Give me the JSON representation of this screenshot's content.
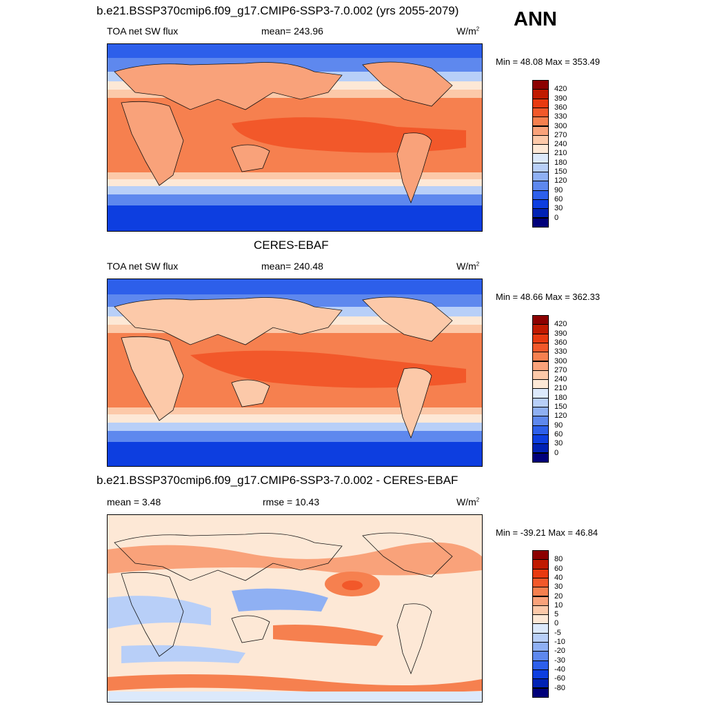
{
  "season": "ANN",
  "panels": [
    {
      "title": "b.e21.BSSP370cmip6.f09_g17.CMIP6-SSP3-7.0.002 (yrs 2055-2079)",
      "left_label": "TOA net SW flux",
      "center_label": "mean= 243.96",
      "units": "W/m",
      "units_sup": "2",
      "minmax": "Min =  48.08 Max = 353.49"
    },
    {
      "title": "CERES-EBAF",
      "left_label": "TOA net SW flux",
      "center_label": "mean= 240.48",
      "units": "W/m",
      "units_sup": "2",
      "minmax": "Min =  48.66 Max = 362.33"
    },
    {
      "title": "b.e21.BSSP370cmip6.f09_g17.CMIP6-SSP3-7.0.002 - CERES-EBAF",
      "left_label": "mean =   3.48",
      "center_label": "rmse =  10.43",
      "units": "W/m",
      "units_sup": "2",
      "minmax": "Min = -39.21 Max =  46.84"
    }
  ],
  "colorbars": {
    "flux": {
      "labels": [
        "420",
        "390",
        "360",
        "330",
        "300",
        "270",
        "240",
        "210",
        "180",
        "150",
        "120",
        "90",
        "60",
        "30",
        "0"
      ],
      "colors": [
        "#8c0000",
        "#c01a00",
        "#e83a10",
        "#f2582a",
        "#f6804f",
        "#f9a27a",
        "#fcc9a9",
        "#fde8d6",
        "#dce9fb",
        "#b8cff8",
        "#8fb0f3",
        "#5e88ee",
        "#2d5fea",
        "#0d3ee0",
        "#0022b4",
        "#00007a"
      ]
    },
    "diff": {
      "labels": [
        "80",
        "60",
        "40",
        "30",
        "20",
        "10",
        "5",
        "0",
        "-5",
        "-10",
        "-20",
        "-30",
        "-40",
        "-60",
        "-80"
      ],
      "colors": [
        "#8c0000",
        "#c01a00",
        "#e83a10",
        "#f2582a",
        "#f6804f",
        "#f9a27a",
        "#fcc9a9",
        "#fde8d6",
        "#dce9fb",
        "#b8cff8",
        "#8fb0f3",
        "#5e88ee",
        "#2d5fea",
        "#0d3ee0",
        "#0022b4",
        "#00007a"
      ]
    }
  }
}
